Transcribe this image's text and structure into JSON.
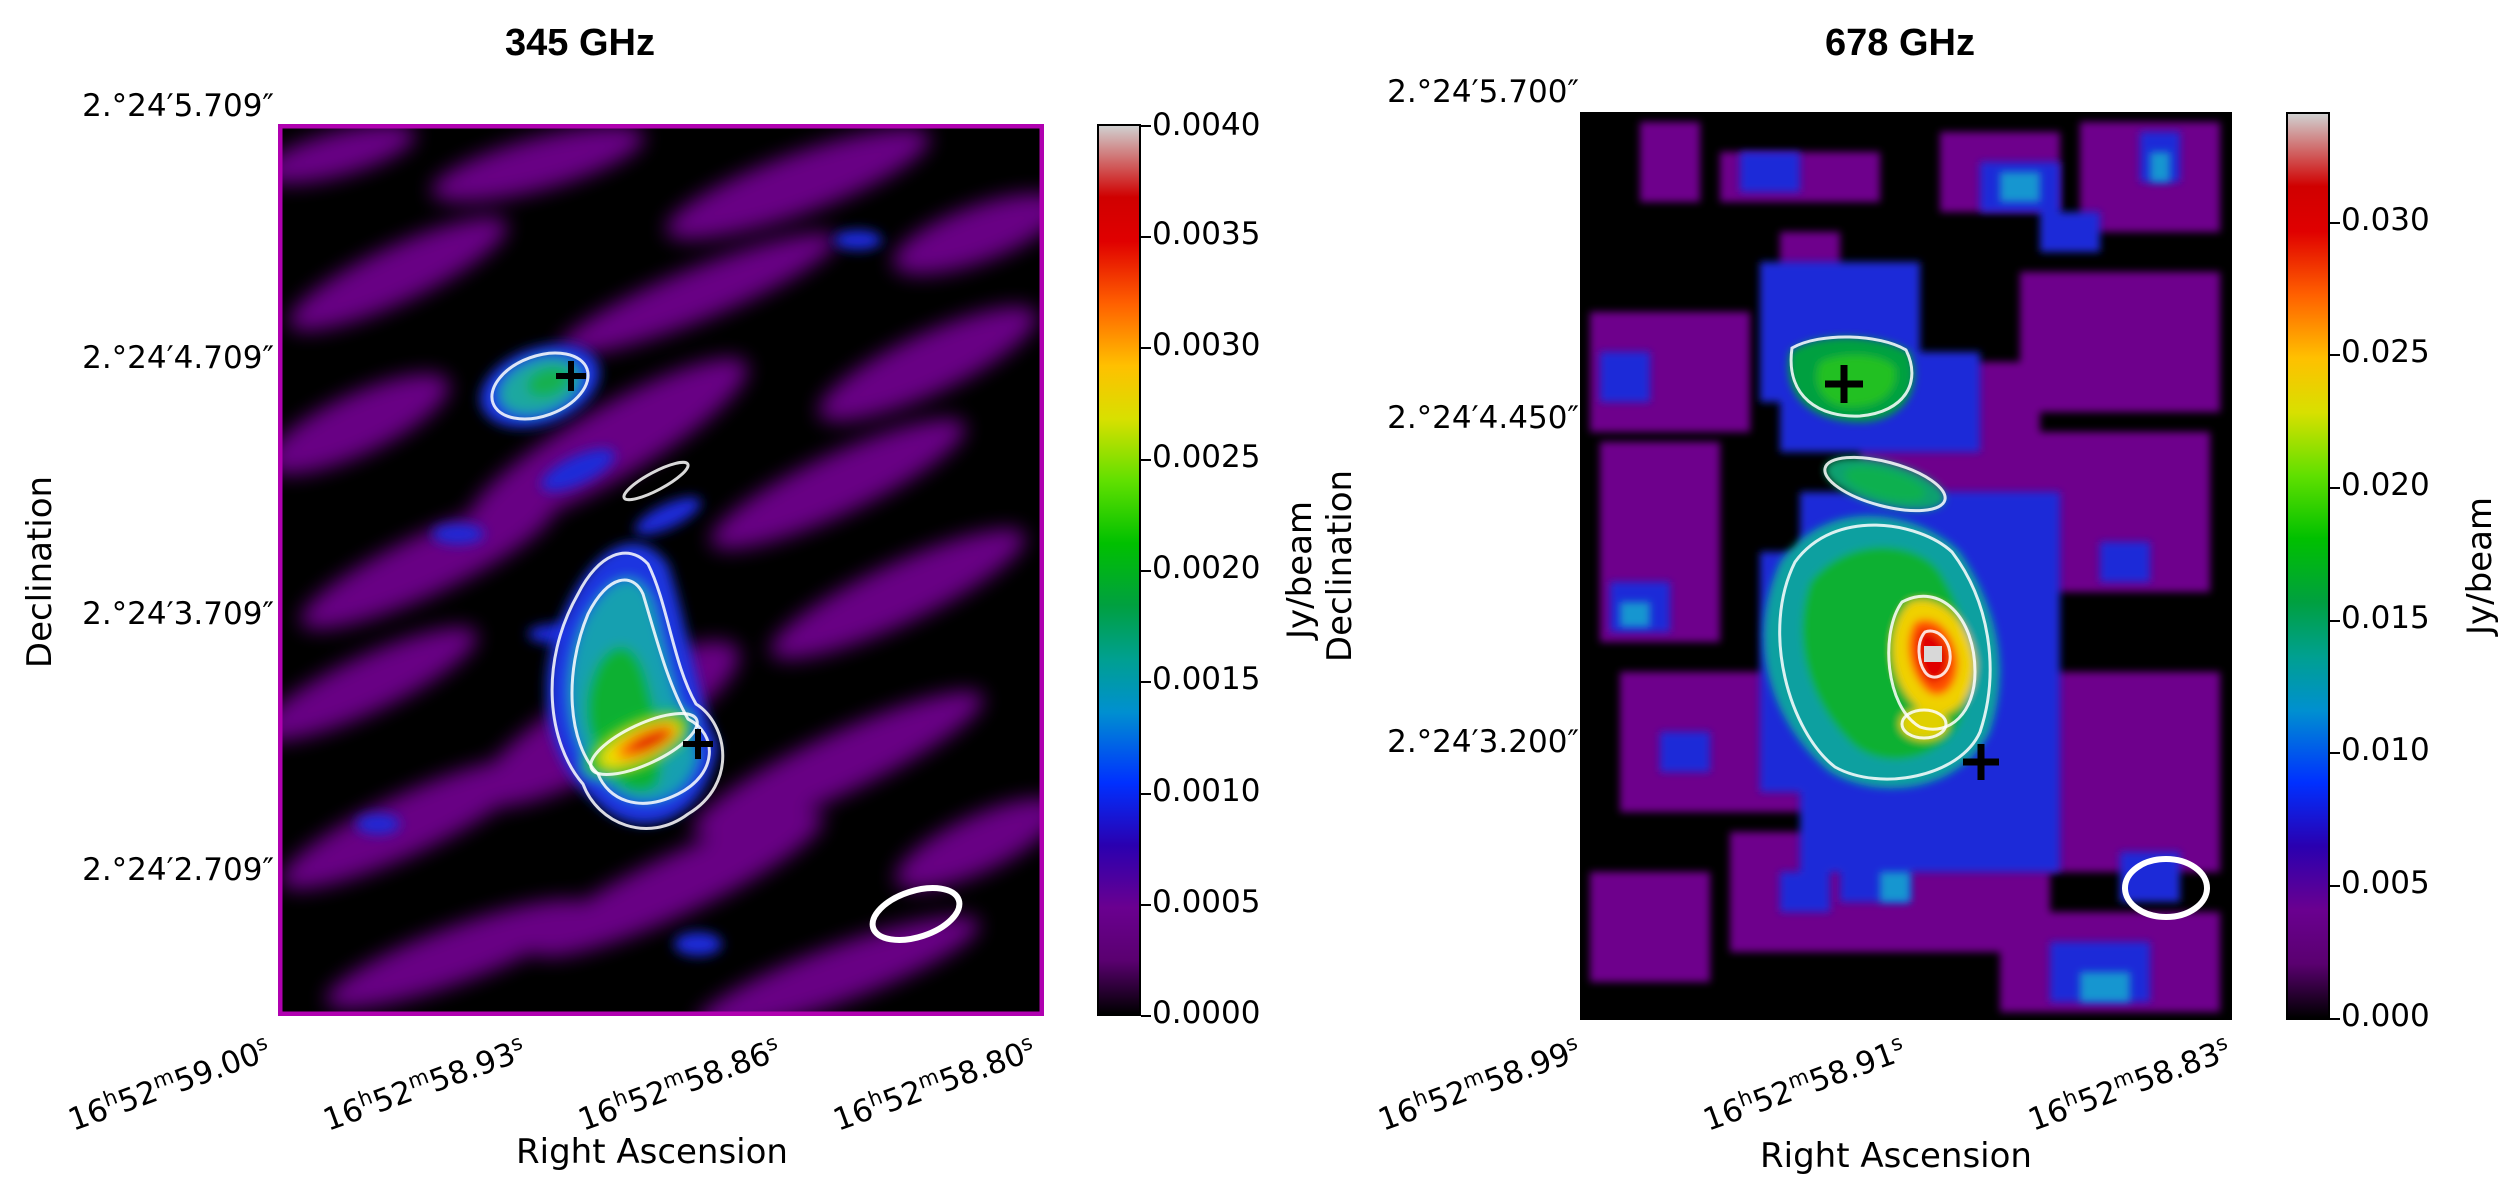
{
  "chart_data": [
    {
      "type": "heatmap",
      "title": "345 GHz",
      "xlabel": "Right Ascension",
      "ylabel": "Declination",
      "x_ticks": [
        {
          "h": "16",
          "m": "52",
          "s": "59.00"
        },
        {
          "h": "16",
          "m": "52",
          "s": "58.93"
        },
        {
          "h": "16",
          "m": "52",
          "s": "58.86"
        },
        {
          "h": "16",
          "m": "52",
          "s": "58.80"
        }
      ],
      "y_ticks": [
        "2.°24′5.709″",
        "2.°24′4.709″",
        "2.°24′3.709″",
        "2.°24′2.709″"
      ],
      "colorbar": {
        "label": "Jy/beam",
        "range": [
          0,
          0.004
        ],
        "ticks": [
          "0.0000",
          "0.0005",
          "0.0010",
          "0.0015",
          "0.0020",
          "0.0025",
          "0.0030",
          "0.0035",
          "0.0040"
        ]
      },
      "markers": [
        "+",
        "+"
      ],
      "beam": "ellipse",
      "frame_color": "#b000b0"
    },
    {
      "type": "heatmap",
      "title": "678 GHz",
      "xlabel": "Right Ascension",
      "ylabel": "Declination",
      "x_ticks": [
        {
          "h": "16",
          "m": "52",
          "s": "58.99"
        },
        {
          "h": "16",
          "m": "52",
          "s": "58.91"
        },
        {
          "h": "16",
          "m": "52",
          "s": "58.83"
        }
      ],
      "y_ticks": [
        "2.°24′5.700″",
        "2.°24′4.450″",
        "2.°24′3.200″"
      ],
      "colorbar": {
        "label": "Jy/beam",
        "range": [
          0,
          0.034
        ],
        "ticks": [
          "0.000",
          "0.005",
          "0.010",
          "0.015",
          "0.020",
          "0.025",
          "0.030"
        ]
      },
      "markers": [
        "+",
        "+"
      ],
      "beam": "ellipse",
      "frame_color": "#000000"
    }
  ]
}
